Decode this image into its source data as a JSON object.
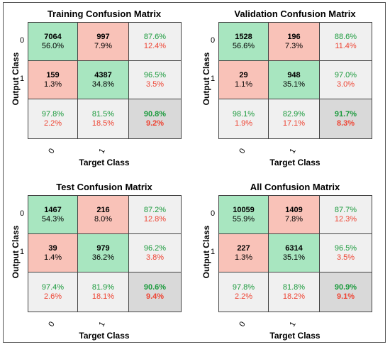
{
  "chart_data": [
    {
      "type": "heatmap",
      "title": "Training Confusion Matrix",
      "xlabel": "Target Class",
      "ylabel": "Output Class",
      "x_ticks": [
        "0",
        "1"
      ],
      "y_ticks": [
        "0",
        "1"
      ],
      "cells": [
        [
          {
            "count": "7064",
            "pct": "56.0%"
          },
          {
            "count": "997",
            "pct": "7.9%"
          },
          {
            "top": "87.6%",
            "bottom": "12.4%"
          }
        ],
        [
          {
            "count": "159",
            "pct": "1.3%"
          },
          {
            "count": "4387",
            "pct": "34.8%"
          },
          {
            "top": "96.5%",
            "bottom": "3.5%"
          }
        ],
        [
          {
            "top": "97.8%",
            "bottom": "2.2%"
          },
          {
            "top": "81.5%",
            "bottom": "18.5%"
          },
          {
            "top": "90.8%",
            "bottom": "9.2%"
          }
        ]
      ]
    },
    {
      "type": "heatmap",
      "title": "Validation Confusion Matrix",
      "xlabel": "Target Class",
      "ylabel": "Output Class",
      "x_ticks": [
        "0",
        "1"
      ],
      "y_ticks": [
        "0",
        "1"
      ],
      "cells": [
        [
          {
            "count": "1528",
            "pct": "56.6%"
          },
          {
            "count": "196",
            "pct": "7.3%"
          },
          {
            "top": "88.6%",
            "bottom": "11.4%"
          }
        ],
        [
          {
            "count": "29",
            "pct": "1.1%"
          },
          {
            "count": "948",
            "pct": "35.1%"
          },
          {
            "top": "97.0%",
            "bottom": "3.0%"
          }
        ],
        [
          {
            "top": "98.1%",
            "bottom": "1.9%"
          },
          {
            "top": "82.9%",
            "bottom": "17.1%"
          },
          {
            "top": "91.7%",
            "bottom": "8.3%"
          }
        ]
      ]
    },
    {
      "type": "heatmap",
      "title": "Test Confusion Matrix",
      "xlabel": "Target Class",
      "ylabel": "Output Class",
      "x_ticks": [
        "0",
        "1"
      ],
      "y_ticks": [
        "0",
        "1"
      ],
      "cells": [
        [
          {
            "count": "1467",
            "pct": "54.3%"
          },
          {
            "count": "216",
            "pct": "8.0%"
          },
          {
            "top": "87.2%",
            "bottom": "12.8%"
          }
        ],
        [
          {
            "count": "39",
            "pct": "1.4%"
          },
          {
            "count": "979",
            "pct": "36.2%"
          },
          {
            "top": "96.2%",
            "bottom": "3.8%"
          }
        ],
        [
          {
            "top": "97.4%",
            "bottom": "2.6%"
          },
          {
            "top": "81.9%",
            "bottom": "18.1%"
          },
          {
            "top": "90.6%",
            "bottom": "9.4%"
          }
        ]
      ]
    },
    {
      "type": "heatmap",
      "title": "All Confusion Matrix",
      "xlabel": "Target Class",
      "ylabel": "Output Class",
      "x_ticks": [
        "0",
        "1"
      ],
      "y_ticks": [
        "0",
        "1"
      ],
      "cells": [
        [
          {
            "count": "10059",
            "pct": "55.9%"
          },
          {
            "count": "1409",
            "pct": "7.8%"
          },
          {
            "top": "87.7%",
            "bottom": "12.3%"
          }
        ],
        [
          {
            "count": "227",
            "pct": "1.3%"
          },
          {
            "count": "6314",
            "pct": "35.1%"
          },
          {
            "top": "96.5%",
            "bottom": "3.5%"
          }
        ],
        [
          {
            "top": "97.8%",
            "bottom": "2.2%"
          },
          {
            "top": "81.8%",
            "bottom": "18.2%"
          },
          {
            "top": "90.9%",
            "bottom": "9.1%"
          }
        ]
      ]
    }
  ],
  "colors": {
    "correct_cell": "#a8e6c0",
    "incorrect_cell": "#f9c2b8",
    "summary_cell": "#f0f0f0",
    "overall_cell": "#d9d9d9",
    "good_text": "#1a9a3c",
    "bad_text": "#ee4433"
  }
}
